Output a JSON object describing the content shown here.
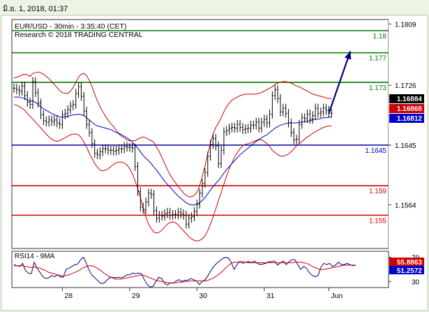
{
  "window": {
    "timestamp": "มิ.ย. 1, 2018, 01:37"
  },
  "header": {
    "title": "EUR/USD - 30min - 3:35:40 (CET)",
    "copyright": "Research © 2018 TRADING CENTRAL"
  },
  "colors": {
    "background": "#ffffff",
    "frame": "#c8ddb0",
    "price": "#000000",
    "bollinger": "#cc0000",
    "ma_blue": "#0000cc",
    "support": "#cc0000",
    "resistance": "#007700",
    "pivot": "#0000aa",
    "projection": "#000080",
    "rsi": "#000080",
    "rsi_ma": "#cc0000"
  },
  "chart_data": [
    {
      "type": "candlestick",
      "title": "EUR/USD - 30min - 3:35:40 (CET)",
      "y_ticks": [
        1.1809,
        1.1726,
        1.1645,
        1.1564
      ],
      "y_tick_labels": [
        "1.1809",
        "1.1726",
        "1.1645",
        "1.1564"
      ],
      "ylim": [
        1.1505,
        1.1815
      ],
      "x_ticks": [
        "28",
        "29",
        "30",
        "31",
        "Jun"
      ],
      "x_tick_index": [
        18,
        43,
        68,
        93,
        117
      ],
      "price_count": 128,
      "price_series": [
        {
          "name": "price",
          "values": [
            1.1722,
            1.172,
            1.1718,
            1.1725,
            1.1712,
            1.1703,
            1.17,
            1.1731,
            1.1716,
            1.1702,
            1.1686,
            1.1678,
            1.1676,
            1.1679,
            1.1677,
            1.1679,
            1.1675,
            1.1673,
            1.1686,
            1.1688,
            1.1693,
            1.1698,
            1.17,
            1.1715,
            1.1724,
            1.1711,
            1.1691,
            1.1673,
            1.1662,
            1.1647,
            1.1634,
            1.1632,
            1.1636,
            1.164,
            1.164,
            1.1638,
            1.1638,
            1.1637,
            1.1638,
            1.164,
            1.164,
            1.1643,
            1.1642,
            1.1642,
            1.1641,
            1.1616,
            1.1582,
            1.1561,
            1.1558,
            1.1568,
            1.158,
            1.1578,
            1.1556,
            1.1546,
            1.155,
            1.1549,
            1.1552,
            1.1554,
            1.155,
            1.1551,
            1.1551,
            1.1554,
            1.1552,
            1.155,
            1.1538,
            1.1546,
            1.1548,
            1.1555,
            1.1565,
            1.158,
            1.1593,
            1.1608,
            1.163,
            1.1646,
            1.1654,
            1.1644,
            1.162,
            1.1638,
            1.1663,
            1.1665,
            1.1668,
            1.1669,
            1.1668,
            1.1673,
            1.1669,
            1.1666,
            1.1667,
            1.1668,
            1.1672,
            1.1672,
            1.1676,
            1.1668,
            1.1676,
            1.168,
            1.1675,
            1.1687,
            1.1712,
            1.172,
            1.1708,
            1.169,
            1.1695,
            1.1688,
            1.1675,
            1.1662,
            1.1652,
            1.1653,
            1.1673,
            1.1682,
            1.1681,
            1.1687,
            1.168,
            1.1685,
            1.1695,
            1.1688,
            1.169,
            1.1695,
            1.1692,
            1.1688,
            1.1688
          ]
        },
        {
          "name": "ma",
          "values": [
            1.171,
            1.171,
            1.171,
            1.1709,
            1.1708,
            1.1706,
            1.1704,
            1.1705,
            1.1703,
            1.17,
            1.1697,
            1.1694,
            1.1692,
            1.169,
            1.1688,
            1.1686,
            1.1685,
            1.1683,
            1.1683,
            1.1683,
            1.1684,
            1.1685,
            1.1686,
            1.1686,
            1.1687,
            1.1686,
            1.1685,
            1.1682,
            1.1679,
            1.1676,
            1.1673,
            1.1671,
            1.167,
            1.1669,
            1.1668,
            1.1667,
            1.1666,
            1.1664,
            1.1662,
            1.1661,
            1.1659,
            1.1657,
            1.1655,
            1.1652,
            1.1649,
            1.1645,
            1.1641,
            1.1636,
            1.1631,
            1.1627,
            1.1624,
            1.162,
            1.1615,
            1.1611,
            1.1606,
            1.1601,
            1.1596,
            1.1592,
            1.1588,
            1.1584,
            1.158,
            1.1576,
            1.1573,
            1.157,
            1.1567,
            1.1565,
            1.1564,
            1.1564,
            1.1565,
            1.1567,
            1.157,
            1.1574,
            1.1579,
            1.1584,
            1.1589,
            1.1593,
            1.1597,
            1.1602,
            1.1607,
            1.1612,
            1.1616,
            1.162,
            1.1624,
            1.1628,
            1.1632,
            1.1635,
            1.1638,
            1.1641,
            1.1644,
            1.1647,
            1.165,
            1.1652,
            1.1655,
            1.1657,
            1.1659,
            1.1662,
            1.1665,
            1.1668,
            1.167,
            1.1672,
            1.1673,
            1.1674,
            1.1675,
            1.1675,
            1.1675,
            1.1675,
            1.1676,
            1.1676,
            1.1677,
            1.1677,
            1.1678,
            1.1679,
            1.168,
            1.168,
            1.1681,
            1.1682,
            1.1682,
            1.1683,
            1.1683
          ]
        },
        {
          "name": "bb_upper",
          "values": [
            1.1736,
            1.1737,
            1.1738,
            1.174,
            1.1741,
            1.174,
            1.1738,
            1.1742,
            1.1743,
            1.1744,
            1.1743,
            1.1741,
            1.1738,
            1.1735,
            1.1731,
            1.1727,
            1.1723,
            1.1719,
            1.1716,
            1.1715,
            1.1715,
            1.1718,
            1.1723,
            1.173,
            1.1737,
            1.1741,
            1.1742,
            1.1739,
            1.1733,
            1.1724,
            1.1714,
            1.1705,
            1.1697,
            1.169,
            1.1684,
            1.1679,
            1.1674,
            1.167,
            1.1665,
            1.166,
            1.1657,
            1.1655,
            1.1652,
            1.1651,
            1.1651,
            1.1651,
            1.1653,
            1.1655,
            1.1656,
            1.1655,
            1.1653,
            1.1651,
            1.1649,
            1.1642,
            1.1636,
            1.1628,
            1.162,
            1.1612,
            1.1605,
            1.1599,
            1.1594,
            1.1589,
            1.1585,
            1.158,
            1.1577,
            1.1575,
            1.1575,
            1.1577,
            1.1581,
            1.159,
            1.1603,
            1.1617,
            1.1633,
            1.1648,
            1.166,
            1.1669,
            1.1675,
            1.1682,
            1.169,
            1.1697,
            1.1702,
            1.1706,
            1.1708,
            1.171,
            1.1712,
            1.1713,
            1.1714,
            1.1714,
            1.1714,
            1.1714,
            1.1714,
            1.1715,
            1.1716,
            1.1718,
            1.172,
            1.1722,
            1.1724,
            1.1727,
            1.1729,
            1.173,
            1.1731,
            1.1731,
            1.173,
            1.1729,
            1.1727,
            1.1725,
            1.1724,
            1.1722,
            1.172,
            1.1718,
            1.1716,
            1.1714,
            1.1713,
            1.1712,
            1.1711,
            1.171,
            1.1709,
            1.1708,
            1.1708
          ]
        },
        {
          "name": "bb_lower",
          "values": [
            1.17,
            1.1699,
            1.1697,
            1.1695,
            1.1692,
            1.1688,
            1.1684,
            1.168,
            1.1676,
            1.1672,
            1.1668,
            1.1664,
            1.166,
            1.1656,
            1.1653,
            1.1651,
            1.165,
            1.1651,
            1.1653,
            1.1655,
            1.1657,
            1.1659,
            1.166,
            1.166,
            1.1659,
            1.1655,
            1.1649,
            1.1642,
            1.1634,
            1.1627,
            1.162,
            1.1615,
            1.1611,
            1.161,
            1.1611,
            1.1613,
            1.1616,
            1.1619,
            1.1621,
            1.1622,
            1.1622,
            1.1621,
            1.1618,
            1.1613,
            1.1606,
            1.1597,
            1.1586,
            1.1574,
            1.156,
            1.1548,
            1.1538,
            1.1532,
            1.1527,
            1.1526,
            1.1527,
            1.153,
            1.1534,
            1.1538,
            1.154,
            1.1541,
            1.154,
            1.1537,
            1.1533,
            1.1529,
            1.1525,
            1.1521,
            1.1518,
            1.1516,
            1.1515,
            1.1516,
            1.1518,
            1.1522,
            1.1529,
            1.1538,
            1.1548,
            1.1559,
            1.157,
            1.1581,
            1.1592,
            1.1603,
            1.1613,
            1.1621,
            1.1629,
            1.1635,
            1.164,
            1.1644,
            1.1646,
            1.1647,
            1.1648,
            1.165,
            1.1651,
            1.1653,
            1.1652,
            1.165,
            1.1647,
            1.1643,
            1.1638,
            1.1635,
            1.1632,
            1.163,
            1.163,
            1.1631,
            1.1633,
            1.1636,
            1.164,
            1.1644,
            1.1647,
            1.165,
            1.1653,
            1.1656,
            1.1658,
            1.1661,
            1.1663,
            1.1665,
            1.1667,
            1.1669,
            1.167,
            1.1671,
            1.1671
          ]
        }
      ],
      "levels": [
        {
          "label": "1.18",
          "value": 1.18,
          "kind": "resistance"
        },
        {
          "label": "1.177",
          "value": 1.177,
          "kind": "resistance"
        },
        {
          "label": "1.173",
          "value": 1.173,
          "kind": "resistance"
        },
        {
          "label": "1.1645",
          "value": 1.1645,
          "kind": "pivot"
        },
        {
          "label": "1.159",
          "value": 1.159,
          "kind": "support"
        },
        {
          "label": "1.155",
          "value": 1.155,
          "kind": "support"
        }
      ],
      "price_tags": [
        {
          "label": "1.16884",
          "value": 1.16884,
          "bg": "#000000",
          "fg": "#ffffff"
        },
        {
          "label": "1.16868",
          "value": 1.16868,
          "bg": "#cc0000",
          "fg": "#ffffff"
        },
        {
          "label": "1.16812",
          "value": 1.16812,
          "bg": "#0000cc",
          "fg": "#ffffff"
        }
      ],
      "projection": {
        "from_index": 117,
        "from_value": 1.1688,
        "to_index": 125,
        "to_value": 1.1772
      }
    },
    {
      "type": "line",
      "title": "RSI14 - 9MA",
      "ylim": [
        20,
        80
      ],
      "y_ticks": [
        70,
        30
      ],
      "y_tick_labels": [
        "70",
        "30"
      ],
      "series": [
        {
          "name": "RSI14",
          "values": [
            58,
            56,
            55,
            60,
            48,
            44,
            43,
            62,
            52,
            45,
            38,
            35,
            36,
            40,
            38,
            41,
            38,
            37,
            50,
            52,
            55,
            58,
            59,
            66,
            70,
            60,
            48,
            40,
            36,
            31,
            27,
            27,
            32,
            36,
            37,
            36,
            37,
            36,
            38,
            41,
            41,
            44,
            43,
            44,
            43,
            33,
            25,
            21,
            22,
            30,
            37,
            35,
            27,
            24,
            28,
            27,
            31,
            33,
            30,
            32,
            32,
            35,
            33,
            31,
            25,
            30,
            33,
            40,
            48,
            55,
            60,
            64,
            68,
            70,
            69,
            62,
            50,
            58,
            63,
            60,
            62,
            63,
            61,
            64,
            60,
            58,
            59,
            60,
            63,
            63,
            64,
            57,
            61,
            64,
            58,
            63,
            66,
            66,
            58,
            50,
            55,
            52,
            44,
            40,
            38,
            40,
            54,
            60,
            58,
            60,
            55,
            57,
            62,
            58,
            58,
            60,
            58,
            56,
            57
          ]
        },
        {
          "name": "9MA",
          "values": [
            56,
            56,
            56,
            56,
            55,
            54,
            53,
            54,
            53,
            52,
            50,
            48,
            45,
            44,
            43,
            41,
            40,
            39,
            40,
            41,
            43,
            45,
            47,
            50,
            53,
            55,
            56,
            56,
            54,
            51,
            48,
            44,
            41,
            38,
            36,
            34,
            34,
            34,
            35,
            36,
            37,
            38,
            39,
            40,
            41,
            40,
            38,
            36,
            34,
            32,
            31,
            30,
            29,
            28,
            28,
            28,
            28,
            29,
            29,
            30,
            30,
            31,
            31,
            31,
            31,
            31,
            31,
            32,
            34,
            36,
            39,
            43,
            47,
            52,
            56,
            60,
            62,
            62,
            63,
            63,
            62,
            61,
            61,
            61,
            61,
            61,
            61,
            61,
            61,
            61,
            61,
            61,
            61,
            61,
            61,
            61,
            61,
            62,
            62,
            62,
            61,
            60,
            58,
            55,
            53,
            51,
            50,
            50,
            51,
            52,
            53,
            54,
            55,
            56,
            57,
            57,
            57,
            57,
            57
          ]
        }
      ],
      "value_tags": [
        {
          "label": "55.8863",
          "value": 55.8863,
          "bg": "#cc0000",
          "fg": "#ffffff"
        },
        {
          "label": "51.2572",
          "value": 51.2572,
          "bg": "#0000cc",
          "fg": "#ffffff"
        }
      ]
    }
  ]
}
